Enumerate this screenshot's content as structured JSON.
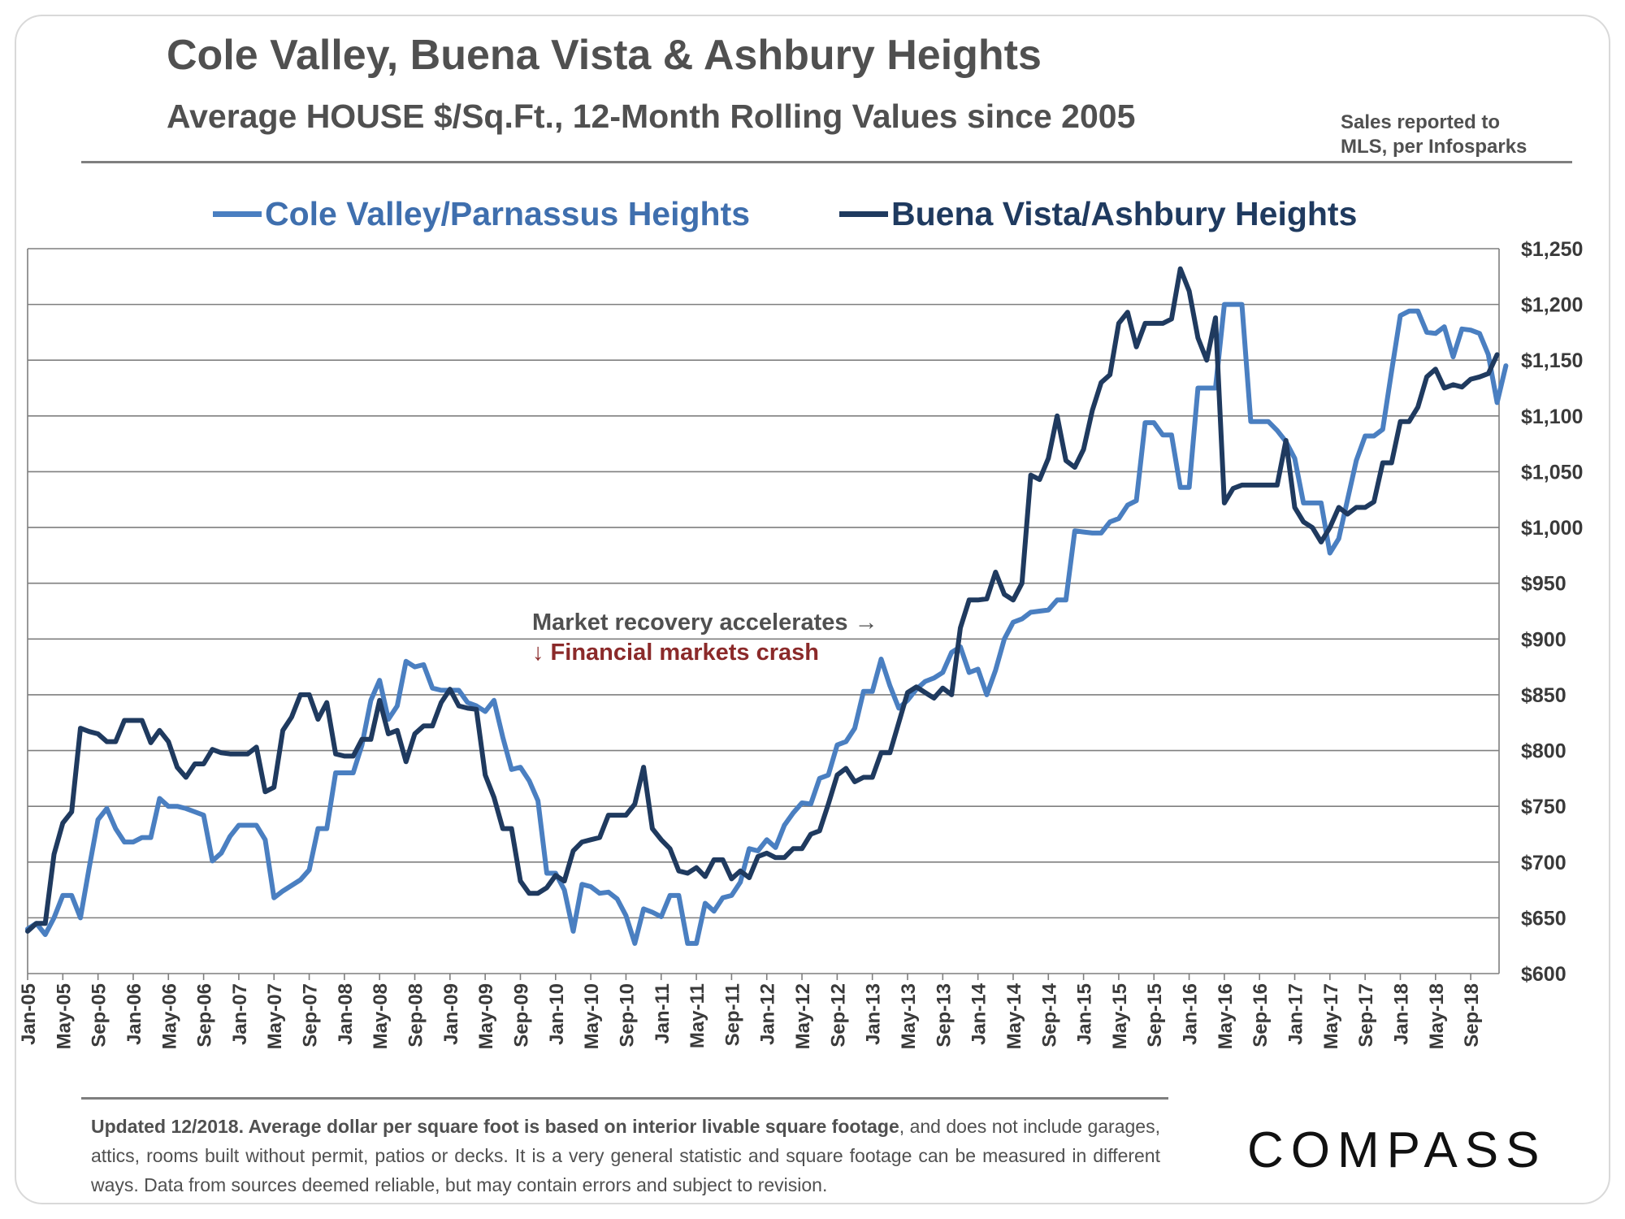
{
  "header": {
    "title": "Cole Valley, Buena Vista & Ashbury Heights",
    "subtitle": "Average HOUSE $/Sq.Ft., 12-Month Rolling Values since 2005",
    "source_line1": "Sales reported to",
    "source_line2": "MLS, per Infosparks"
  },
  "footer": {
    "footnote_bold": "Updated 12/2018. Average dollar per square foot is based on interior livable square footage",
    "footnote_rest": ", and does not include garages, attics, rooms built without permit, patios or decks. It is a very general statistic and square footage can be measured in different ways. Data from sources deemed reliable, but may contain errors and subject to revision.",
    "logo": "COMPASS"
  },
  "colors": {
    "cole": "#4a7fc1",
    "buena": "#1f3a5f",
    "grid": "#7f7f7f"
  },
  "chart_data": {
    "type": "line",
    "title": "Average HOUSE $/Sq.Ft., 12-Month Rolling Values since 2005",
    "ylim": [
      600,
      1250
    ],
    "y_ticks": [
      600,
      650,
      700,
      750,
      800,
      850,
      900,
      950,
      1000,
      1050,
      1100,
      1150,
      1200,
      1250
    ],
    "y_tick_labels": [
      "$600",
      "$650",
      "$700",
      "$750",
      "$800",
      "$850",
      "$900",
      "$950",
      "$1,000",
      "$1,050",
      "$1,100",
      "$1,150",
      "$1,200",
      "$1,250"
    ],
    "x_start": "Jan-05",
    "x_end": "Dec-18",
    "x_tick_labels": [
      "Jan-05",
      "May-05",
      "Sep-05",
      "Jan-06",
      "May-06",
      "Sep-06",
      "Jan-07",
      "May-07",
      "Sep-07",
      "Jan-08",
      "May-08",
      "Sep-08",
      "Jan-09",
      "May-09",
      "Sep-09",
      "Jan-10",
      "May-10",
      "Sep-10",
      "Jan-11",
      "May-11",
      "Sep-11",
      "Jan-12",
      "May-12",
      "Sep-12",
      "Jan-13",
      "May-13",
      "Sep-13",
      "Jan-14",
      "May-14",
      "Sep-14",
      "Jan-15",
      "May-15",
      "Sep-15",
      "Jan-16",
      "May-16",
      "Sep-16",
      "Jan-17",
      "May-17",
      "Sep-17",
      "Jan-18",
      "May-18",
      "Sep-18"
    ],
    "annotations": [
      {
        "text": "Market recovery accelerates →"
      },
      {
        "text": "↓ Financial markets crash"
      }
    ],
    "series": [
      {
        "name": "Cole Valley/Parnassus Heights",
        "values": [
          640,
          645,
          635,
          650,
          670,
          670,
          650,
          695,
          738,
          748,
          730,
          718,
          718,
          722,
          722,
          757,
          750,
          750,
          748,
          745,
          742,
          701,
          708,
          723,
          733,
          733,
          733,
          720,
          668,
          674,
          679,
          684,
          693,
          730,
          730,
          780,
          780,
          780,
          805,
          845,
          863,
          828,
          840,
          880,
          875,
          877,
          856,
          854,
          854,
          854,
          843,
          840,
          835,
          845,
          812,
          783,
          785,
          773,
          755,
          690,
          690,
          675,
          638,
          680,
          678,
          672,
          673,
          667,
          652,
          627,
          658,
          655,
          651,
          670,
          670,
          627,
          627,
          663,
          656,
          668,
          670,
          682,
          712,
          710,
          720,
          713,
          733,
          744,
          753,
          752,
          775,
          778,
          805,
          808,
          820,
          853,
          853,
          882,
          858,
          838,
          845,
          855,
          862,
          865,
          870,
          888,
          893,
          870,
          873,
          850,
          872,
          900,
          915,
          918,
          924,
          925,
          926,
          935,
          935,
          997,
          996,
          995,
          995,
          1005,
          1008,
          1020,
          1024,
          1094,
          1094,
          1083,
          1083,
          1036,
          1036,
          1125,
          1125,
          1125,
          1200,
          1200,
          1200,
          1095,
          1095,
          1095,
          1087,
          1077,
          1062,
          1022,
          1022,
          1022,
          977,
          990,
          1025,
          1060,
          1082,
          1082,
          1088,
          1140,
          1190,
          1194,
          1194,
          1175,
          1174,
          1180,
          1153,
          1178,
          1177,
          1174,
          1155,
          1112,
          1145
        ]
      },
      {
        "name": "Buena Vista/Ashbury Heights",
        "values": [
          638,
          645,
          645,
          707,
          735,
          745,
          820,
          817,
          815,
          808,
          808,
          827,
          827,
          827,
          807,
          818,
          808,
          785,
          776,
          788,
          788,
          801,
          798,
          797,
          797,
          797,
          803,
          763,
          767,
          818,
          830,
          850,
          850,
          828,
          843,
          797,
          795,
          795,
          810,
          810,
          845,
          815,
          818,
          790,
          815,
          822,
          822,
          843,
          855,
          840,
          838,
          837,
          778,
          758,
          730,
          730,
          683,
          672,
          672,
          677,
          688,
          683,
          710,
          718,
          720,
          722,
          742,
          742,
          742,
          752,
          785,
          730,
          720,
          712,
          692,
          690,
          695,
          687,
          702,
          702,
          685,
          692,
          686,
          705,
          708,
          704,
          704,
          712,
          712,
          725,
          728,
          752,
          778,
          784,
          772,
          776,
          776,
          798,
          798,
          825,
          852,
          857,
          852,
          847,
          856,
          850,
          910,
          935,
          935,
          936,
          960,
          940,
          935,
          950,
          1047,
          1043,
          1062,
          1100,
          1060,
          1054,
          1070,
          1105,
          1130,
          1137,
          1183,
          1193,
          1162,
          1183,
          1183,
          1183,
          1187,
          1232,
          1212,
          1170,
          1150,
          1188,
          1022,
          1035,
          1038,
          1038,
          1038,
          1038,
          1038,
          1078,
          1018,
          1005,
          1000,
          987,
          1000,
          1018,
          1012,
          1018,
          1018,
          1023,
          1058,
          1058,
          1095,
          1095,
          1108,
          1135,
          1142,
          1125,
          1128,
          1126,
          1133,
          1135,
          1138,
          1155
        ]
      }
    ]
  }
}
